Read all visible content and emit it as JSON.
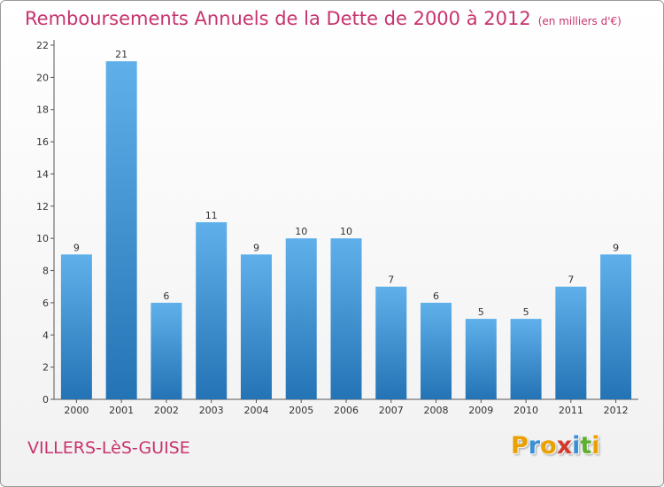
{
  "header": {
    "title": "Remboursements Annuels de la Dette de 2000 à 2012",
    "unit": "(en milliers d'€)"
  },
  "footer": {
    "place": "VILLERS-LèS-GUISE",
    "logo_letters": [
      "P",
      "r",
      "o",
      "x",
      "i",
      "t",
      "i"
    ],
    "logo_colors": [
      "#e9a100",
      "#3a8fd6",
      "#e9a100",
      "#d23a2e",
      "#3a8fd6",
      "#5cb030",
      "#e9a100"
    ]
  },
  "colors": {
    "title": "#c8336e",
    "bar_top": "#5fb0ea",
    "bar_bottom": "#2473b5"
  },
  "chart_data": {
    "type": "bar",
    "categories": [
      "2000",
      "2001",
      "2002",
      "2003",
      "2004",
      "2005",
      "2006",
      "2007",
      "2008",
      "2009",
      "2010",
      "2011",
      "2012"
    ],
    "values": [
      9,
      21,
      6,
      11,
      9,
      10,
      10,
      7,
      6,
      5,
      5,
      7,
      9
    ],
    "data_labels": [
      "9",
      "21",
      "6",
      "11",
      "9",
      "10",
      "10",
      "7",
      "6",
      "5",
      "5",
      "7",
      "9"
    ],
    "yticks": [
      "0",
      "2",
      "4",
      "6",
      "8",
      "10",
      "12",
      "14",
      "16",
      "18",
      "20",
      "22"
    ],
    "ylim": [
      0,
      22
    ],
    "grid": false,
    "legend": "none"
  }
}
